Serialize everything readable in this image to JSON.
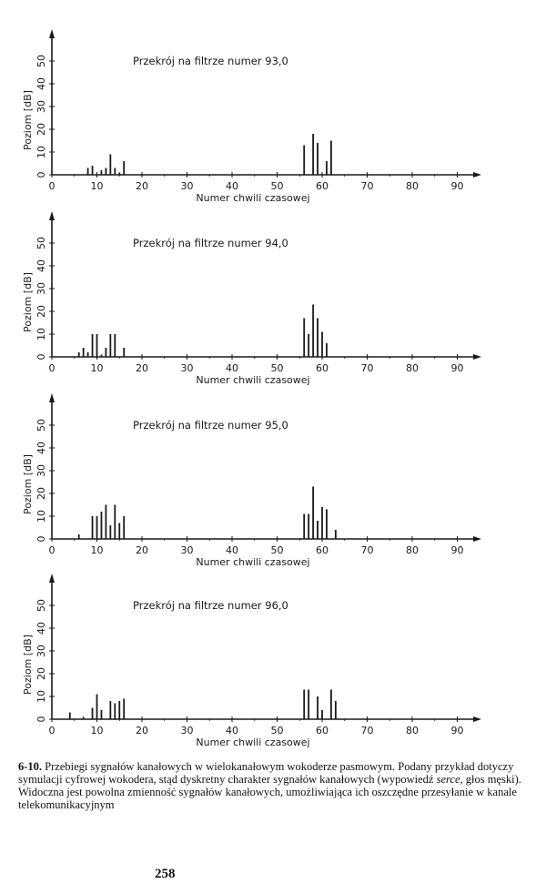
{
  "chart_data": [
    {
      "type": "bar",
      "title": "Przekrój na filtrze numer 93,0",
      "xlabel": "Numer chwili czasowej",
      "ylabel": "Poziom [dB]",
      "xlim": [
        0,
        95
      ],
      "ylim": [
        0,
        55
      ],
      "xticks": [
        0,
        10,
        20,
        30,
        40,
        50,
        60,
        70,
        80,
        90
      ],
      "yticks": [
        0,
        10,
        20,
        30,
        40,
        50
      ],
      "grid": false,
      "x": [
        8,
        9,
        11,
        12,
        13,
        14,
        15,
        16,
        56,
        58,
        59,
        61,
        62
      ],
      "values": [
        3,
        4,
        2,
        3,
        9,
        3,
        1,
        6,
        13,
        18,
        14,
        6,
        15
      ]
    },
    {
      "type": "bar",
      "title": "Przekrój na filtrze numer 94,0",
      "xlabel": "Numer chwili czasowej",
      "ylabel": "Poziom [dB]",
      "xlim": [
        0,
        95
      ],
      "ylim": [
        0,
        55
      ],
      "xticks": [
        0,
        10,
        20,
        30,
        40,
        50,
        60,
        70,
        80,
        90
      ],
      "yticks": [
        0,
        10,
        20,
        30,
        40,
        50
      ],
      "grid": false,
      "x": [
        6,
        7,
        8,
        9,
        10,
        11,
        12,
        13,
        14,
        16,
        56,
        57,
        58,
        59,
        60,
        61
      ],
      "values": [
        2,
        4,
        2,
        10,
        10,
        1,
        4,
        10,
        10,
        4,
        17,
        10,
        23,
        17,
        11,
        6
      ]
    },
    {
      "type": "bar",
      "title": "Przekrój na filtrze numer 95,0",
      "xlabel": "Numer chwili czasowej",
      "ylabel": "Poziom [dB]",
      "xlim": [
        0,
        95
      ],
      "ylim": [
        0,
        55
      ],
      "xticks": [
        0,
        10,
        20,
        30,
        40,
        50,
        60,
        70,
        80,
        90
      ],
      "yticks": [
        0,
        10,
        20,
        30,
        40,
        50
      ],
      "grid": false,
      "x": [
        6,
        9,
        10,
        11,
        12,
        13,
        14,
        15,
        16,
        56,
        57,
        58,
        59,
        60,
        61,
        63
      ],
      "values": [
        2,
        10,
        10,
        12,
        15,
        6,
        15,
        7,
        10,
        11,
        11,
        23,
        8,
        14,
        13,
        4
      ]
    },
    {
      "type": "bar",
      "title": "Przekrój na filtrze numer 96,0",
      "xlabel": "Numer chwili czasowej",
      "ylabel": "Poziom [dB]",
      "xlim": [
        0,
        95
      ],
      "ylim": [
        0,
        55
      ],
      "xticks": [
        0,
        10,
        20,
        30,
        40,
        50,
        60,
        70,
        80,
        90
      ],
      "yticks": [
        0,
        10,
        20,
        30,
        40,
        50
      ],
      "grid": false,
      "x": [
        4,
        7,
        9,
        10,
        11,
        13,
        14,
        15,
        16,
        56,
        57,
        59,
        60,
        62,
        63
      ],
      "values": [
        3,
        1,
        5,
        11,
        4,
        8,
        7,
        8,
        9,
        13,
        13,
        10,
        4,
        13,
        8
      ]
    }
  ],
  "caption": {
    "number": "6-10.",
    "text_1": " Przebiegi sygnałów kanałowych w wielokanałowym wokoderze pasmowym. Podany przykład dotyczy symulacji cyfrowej wokodera, stąd dyskretny charakter sygnałów kanałowych (wypowiedź ",
    "italic": "serce,",
    "text_2": " głos męski). Widoczna jest powolna zmienność sygnałów kanałowych, umożliwiająca ich oszczędne przesyłanie w kanale telekomunikacyjnym"
  },
  "page_number": "258"
}
